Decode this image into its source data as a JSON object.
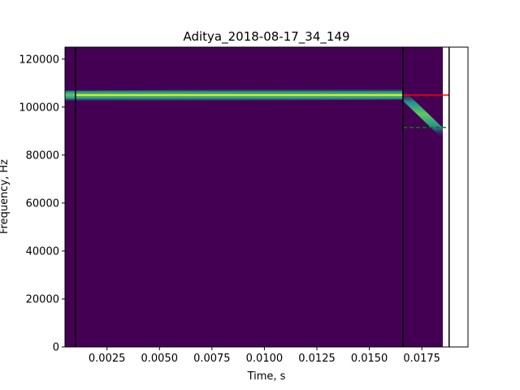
{
  "chart_data": {
    "type": "heatmap",
    "title": "Aditya_2018-08-17_34_149",
    "xlabel": "Time, s",
    "ylabel": "Frequency, Hz",
    "xlim": [
      0.0005,
      0.0197
    ],
    "ylim": [
      0,
      125000
    ],
    "x_ticks": [
      0.0025,
      0.005,
      0.0075,
      0.01,
      0.0125,
      0.015,
      0.0175
    ],
    "x_tick_labels": [
      "0.0025",
      "0.0050",
      "0.0075",
      "0.0100",
      "0.0125",
      "0.0150",
      "0.0175"
    ],
    "y_ticks": [
      0,
      20000,
      40000,
      60000,
      80000,
      100000,
      120000
    ],
    "y_tick_labels": [
      "0",
      "20000",
      "40000",
      "60000",
      "80000",
      "100000",
      "120000"
    ],
    "spectrogram_extent_x": [
      0.0005,
      0.0185
    ],
    "colormap": "viridis",
    "background_color": "#440154",
    "signal_band": {
      "description_of_ridge": "bright ridge of high intensity",
      "segments": [
        {
          "x": [
            0.0005,
            0.0166
          ],
          "y": [
            104500,
            105500
          ]
        },
        {
          "x": [
            0.0166,
            0.0185
          ],
          "y": [
            105000,
            89000
          ]
        }
      ]
    },
    "vertical_lines": [
      {
        "x": 0.001,
        "color": "#000000"
      },
      {
        "x": 0.0166,
        "color": "#000000"
      },
      {
        "x": 0.0188,
        "color": "#000000"
      }
    ],
    "horizontal_lines": [
      {
        "y": 105000,
        "x": [
          0.001,
          0.0166
        ],
        "color": "#ffff00",
        "style": "solid"
      },
      {
        "y": 105000,
        "x": [
          0.0166,
          0.0188
        ],
        "color": "#ff0000",
        "style": "solid"
      },
      {
        "y": 91500,
        "x": [
          0.0166,
          0.0188
        ],
        "color": "#008000",
        "style": "dashed"
      }
    ],
    "grid": false
  }
}
